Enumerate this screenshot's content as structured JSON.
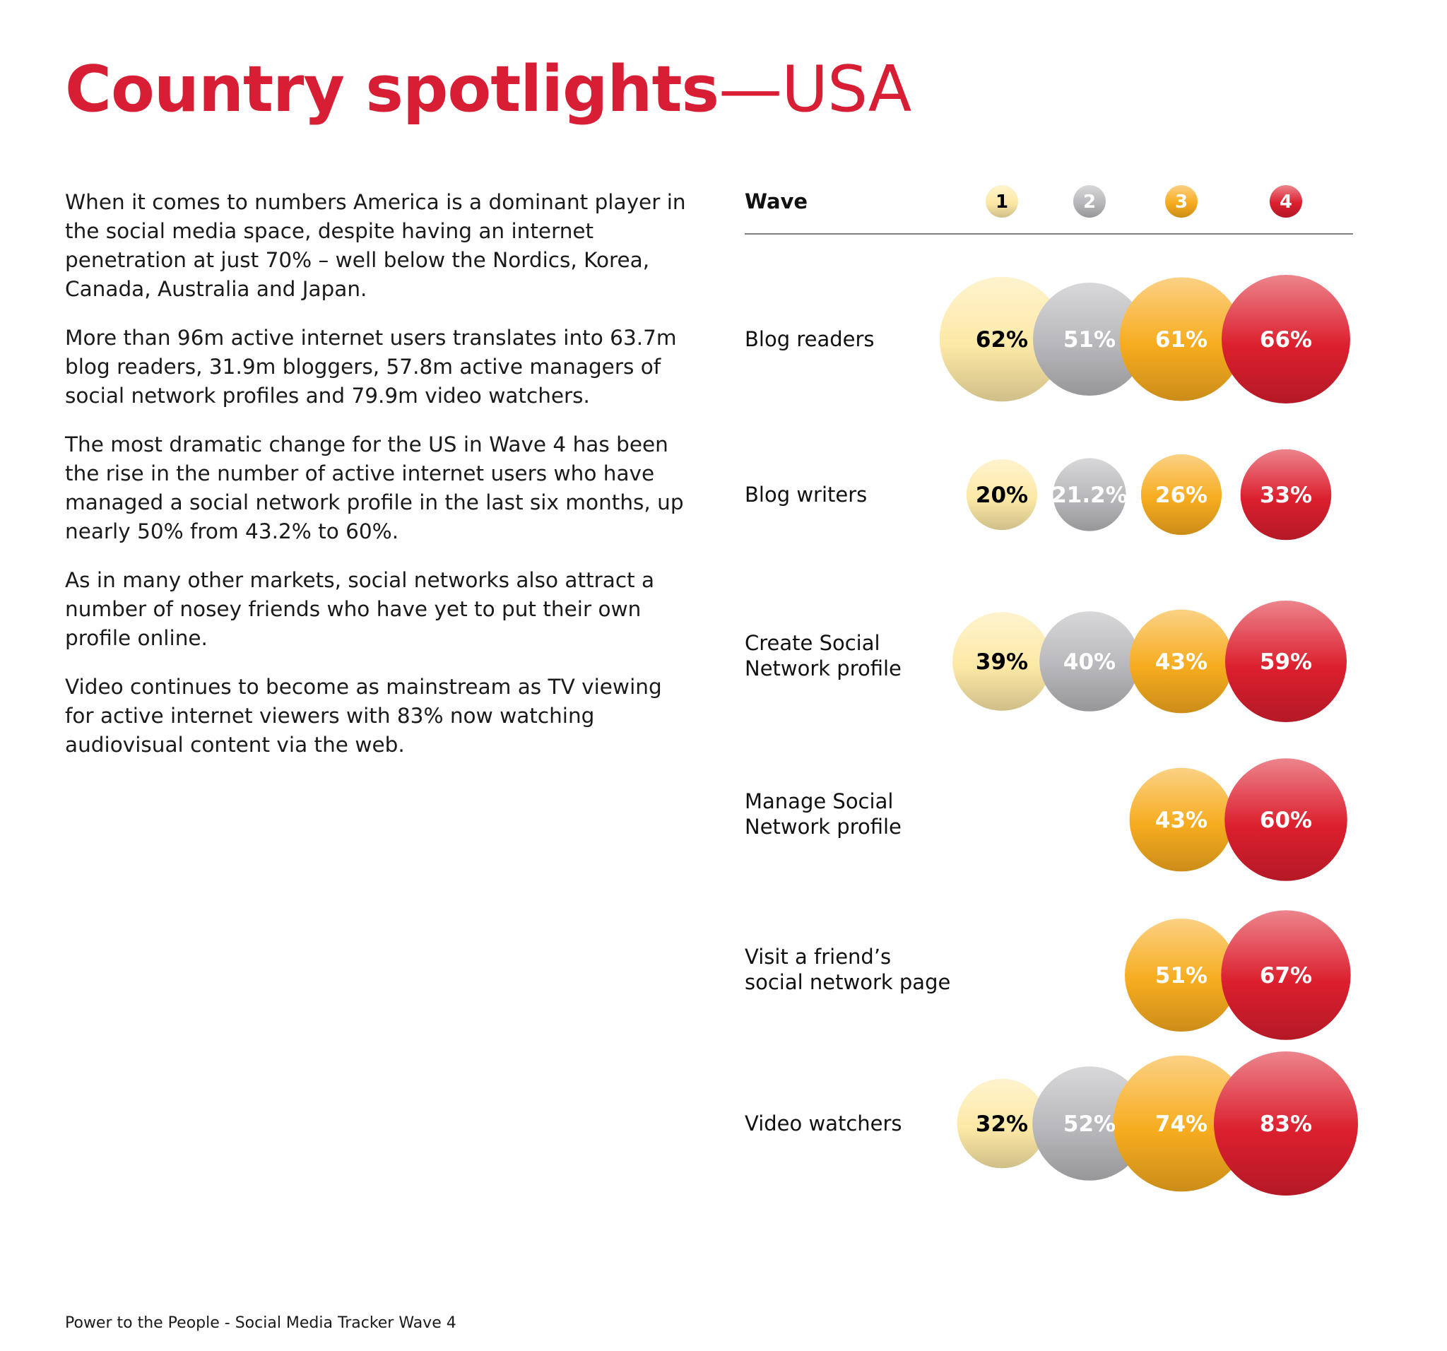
{
  "title": {
    "bold": "Country spotlights",
    "light": "—USA"
  },
  "paragraphs": [
    "When it comes to numbers America is a dominant player in the social media space, despite having an internet penetration at just 70% – well below the Nordics, Korea, Canada, Australia and Japan.",
    "More than 96m active internet users translates into 63.7m blog readers, 31.9m bloggers, 57.8m active managers of social network profiles and 79.9m video watchers.",
    "The most dramatic change for the US in Wave 4 has been the rise in the number of active internet users who have managed a social network profile in the last six months, up nearly 50% from 43.2% to 60%.",
    "As in many other markets, social networks also attract a number of nosey friends who have yet to put their own profile online.",
    "Video continues to become as mainstream as TV viewing for active internet viewers with 83% now watching audiovisual content via the web."
  ],
  "footer": "Power to the People - Social Media Tracker Wave 4",
  "chart_data": {
    "type": "bubble",
    "header_label": "Wave",
    "waves": [
      {
        "label": "1",
        "color": "#fde9a6"
      },
      {
        "label": "2",
        "color": "#b8b8bc"
      },
      {
        "label": "3",
        "color": "#f7ac1f"
      },
      {
        "label": "4",
        "color": "#dc1f2e"
      }
    ],
    "value_text_colors": [
      "#000000",
      "#ffffff",
      "#ffffff",
      "#ffffff"
    ],
    "rows": [
      {
        "label": [
          "Blog readers"
        ],
        "values": [
          62,
          51,
          61,
          66
        ],
        "value_labels": [
          "62%",
          "51%",
          "61%",
          "66%"
        ]
      },
      {
        "label": [
          "Blog writers"
        ],
        "values": [
          20,
          21.2,
          26,
          33
        ],
        "value_labels": [
          "20%",
          "21.2%",
          "26%",
          "33%"
        ]
      },
      {
        "label": [
          "Create Social",
          "Network profile"
        ],
        "values": [
          39,
          40,
          43,
          59
        ],
        "value_labels": [
          "39%",
          "40%",
          "43%",
          "59%"
        ]
      },
      {
        "label": [
          "Manage Social",
          "Network profile"
        ],
        "values": [
          null,
          null,
          43,
          60
        ],
        "value_labels": [
          null,
          null,
          "43%",
          "60%"
        ]
      },
      {
        "label": [
          "Visit a friend’s",
          "social network page"
        ],
        "values": [
          null,
          null,
          51,
          67
        ],
        "value_labels": [
          null,
          null,
          "51%",
          "67%"
        ]
      },
      {
        "label": [
          "Video watchers"
        ],
        "values": [
          32,
          52,
          74,
          83
        ],
        "value_labels": [
          "32%",
          "52%",
          "74%",
          "83%"
        ]
      }
    ]
  }
}
